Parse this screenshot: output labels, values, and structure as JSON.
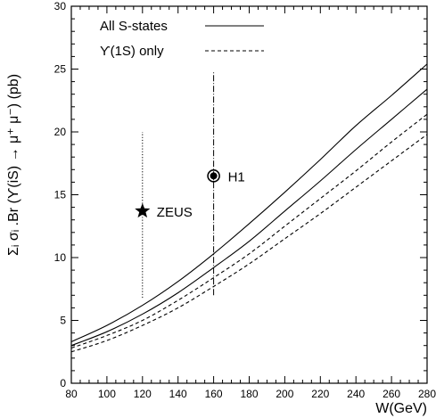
{
  "chart_data": {
    "type": "line",
    "xlabel": "W(GeV)",
    "ylabel": "Σᵢ σᵢ .Br (ϒ(iS) → μ⁺ μ⁻) (pb)",
    "xlim": [
      80,
      280
    ],
    "ylim": [
      0,
      30
    ],
    "x_ticks": [
      80,
      100,
      120,
      140,
      160,
      180,
      200,
      220,
      240,
      260,
      280
    ],
    "y_ticks": [
      0,
      5,
      10,
      15,
      20,
      25,
      30
    ],
    "grid": false,
    "legend_position": "top-left",
    "legend": [
      {
        "label": "All S-states",
        "style": "solid"
      },
      {
        "label": "ϒ(1S) only",
        "style": "dashed"
      }
    ],
    "series": [
      {
        "group": "All S-states",
        "style": "solid",
        "x": [
          80,
          100,
          120,
          140,
          160,
          180,
          200,
          220,
          240,
          260,
          280
        ],
        "y": [
          3.3,
          4.6,
          6.2,
          8.1,
          10.3,
          12.7,
          15.2,
          17.8,
          20.5,
          22.9,
          25.4
        ]
      },
      {
        "group": "All S-states",
        "style": "solid",
        "x": [
          80,
          100,
          120,
          140,
          160,
          180,
          200,
          220,
          240,
          260,
          280
        ],
        "y": [
          3.0,
          4.1,
          5.5,
          7.2,
          9.2,
          11.3,
          13.7,
          16.1,
          18.6,
          21.0,
          23.4
        ]
      },
      {
        "group": "ϒ(1S) only",
        "style": "dashed",
        "x": [
          80,
          100,
          120,
          140,
          160,
          180,
          200,
          220,
          240,
          260,
          280
        ],
        "y": [
          2.8,
          3.8,
          5.0,
          6.6,
          8.4,
          10.3,
          12.5,
          14.7,
          16.9,
          19.2,
          21.4
        ]
      },
      {
        "group": "ϒ(1S) only",
        "style": "dashed",
        "x": [
          80,
          100,
          120,
          140,
          160,
          180,
          200,
          220,
          240,
          260,
          280
        ],
        "y": [
          2.5,
          3.4,
          4.6,
          6.0,
          7.7,
          9.5,
          11.5,
          13.5,
          15.6,
          17.7,
          19.8
        ]
      }
    ],
    "points": [
      {
        "label": "ZEUS",
        "x": 120,
        "y": 13.7,
        "y_low": 6.8,
        "y_high": 20.0,
        "marker": "star",
        "errorbar_style": "dotted"
      },
      {
        "label": "H1",
        "x": 160,
        "y": 16.5,
        "y_low": 7.0,
        "y_high": 24.8,
        "marker": "circled-dot",
        "errorbar_style": "dashdot"
      }
    ]
  }
}
